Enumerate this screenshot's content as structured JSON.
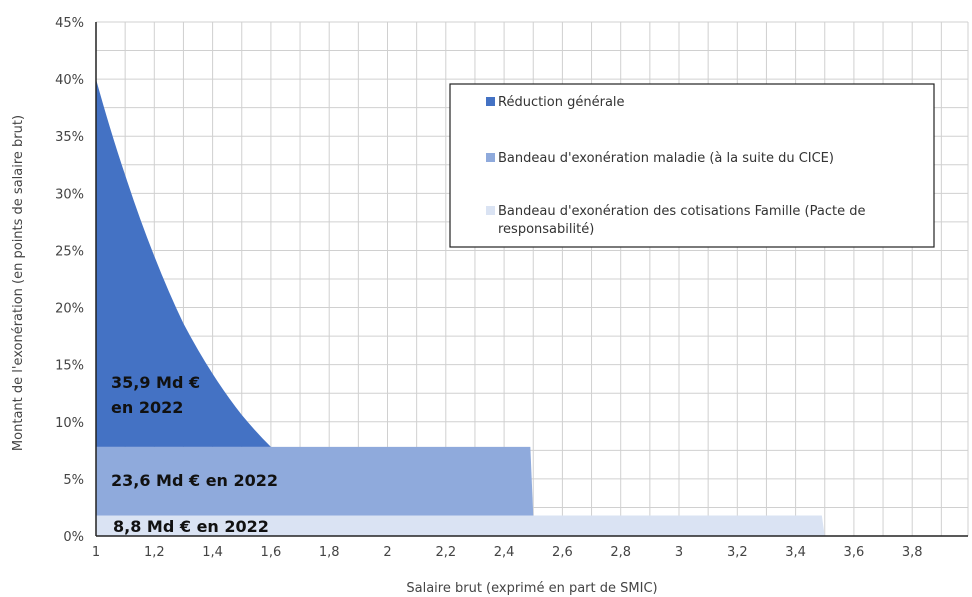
{
  "chart_data": {
    "type": "area",
    "xlabel": "Salaire brut (exprimé en part de SMIC)",
    "ylabel": "Montant de l'exonération (en points de salaire brut)",
    "xlim": [
      1,
      4
    ],
    "ylim": [
      0,
      45
    ],
    "x_ticks": [
      "1",
      "1,2",
      "1,4",
      "1,6",
      "1,8",
      "2",
      "2,2",
      "2,4",
      "2,6",
      "2,8",
      "3",
      "3,2",
      "3,4",
      "3,6",
      "3,8"
    ],
    "y_ticks": [
      "0%",
      "5%",
      "10%",
      "15%",
      "20%",
      "25%",
      "30%",
      "35%",
      "40%",
      "45%"
    ],
    "grid": true,
    "legend_position": "top-right",
    "series": [
      {
        "name": "Réduction générale",
        "color": "#4472c4",
        "x": [
          1,
          1.1,
          1.2,
          1.3,
          1.4,
          1.5,
          1.6
        ],
        "y": [
          40,
          32,
          24,
          17,
          11.5,
          6,
          0
        ],
        "base": 7.8,
        "label": [
          "35,9 Md €",
          "en 2022"
        ]
      },
      {
        "name": "Bandeau d'exonération maladie (à la suite du CICE)",
        "color": "#8faadc",
        "x": [
          1,
          2.5
        ],
        "y": [
          6,
          6
        ],
        "base": 1.8,
        "label": [
          "23,6 Md € en 2022"
        ]
      },
      {
        "name": "Bandeau d'exonération des cotisations Famille (Pacte de responsabilité)",
        "color": "#dae3f3",
        "x": [
          1,
          3.5
        ],
        "y": [
          1.8,
          1.8
        ],
        "base": 0,
        "label": [
          "8,8 Md € en 2022"
        ]
      }
    ]
  },
  "legend": {
    "items": [
      {
        "label": "Réduction générale",
        "color": "#4472c4"
      },
      {
        "label": "Bandeau d'exonération maladie (à la suite du CICE)",
        "color": "#8faadc"
      },
      {
        "label": "Bandeau d'exonération des cotisations Famille (Pacte de",
        "label2": "responsabilité)",
        "color": "#dae3f3"
      }
    ]
  }
}
